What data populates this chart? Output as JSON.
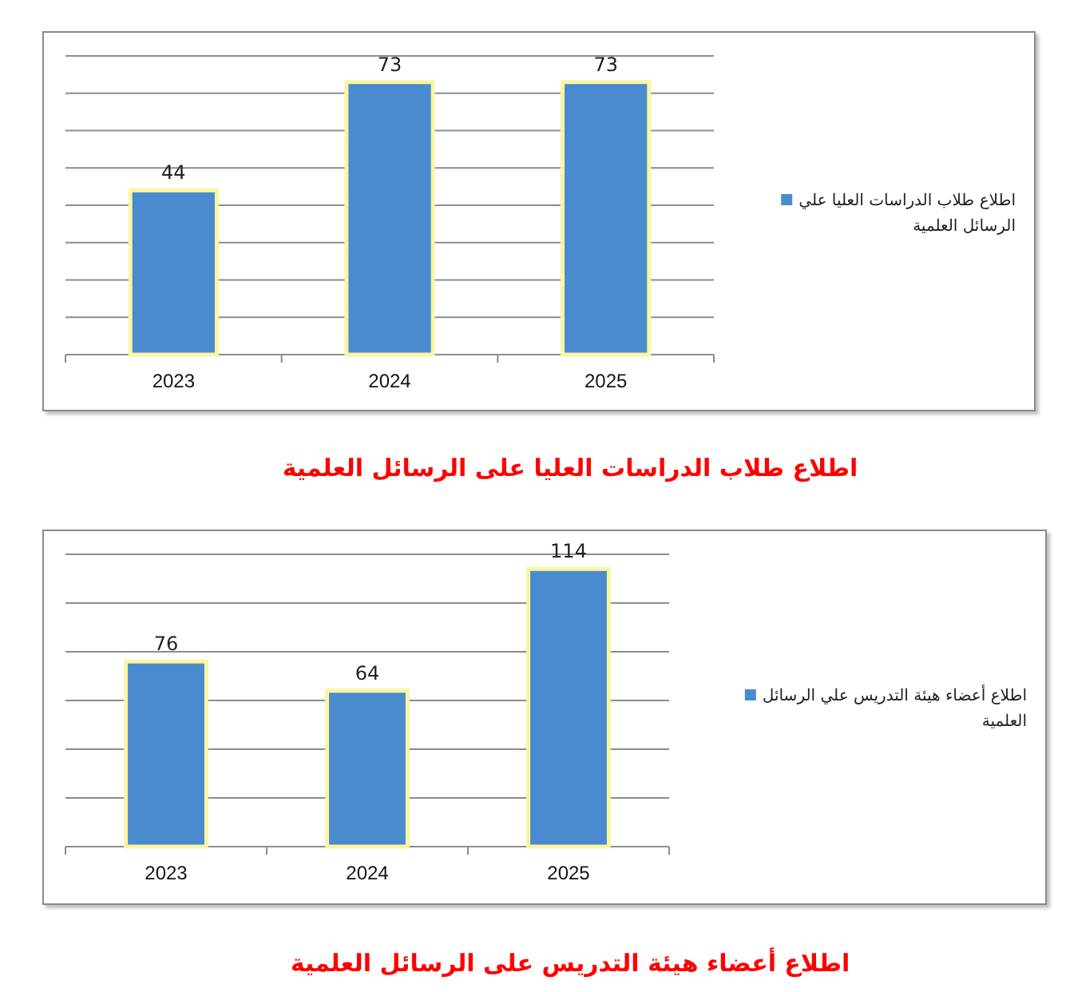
{
  "chart_data": [
    {
      "type": "bar",
      "title": "اطلاع طلاب الدراسات العليا على الرسائل العلمية",
      "categories": [
        "2023",
        "2024",
        "2025"
      ],
      "series": [
        {
          "name": "اطلاع طلاب الدراسات العليا علي الرسائل العلمية",
          "color": "#4a8bd0",
          "values": [
            44,
            73,
            73
          ]
        }
      ],
      "ylim": [
        0,
        80
      ],
      "yticks": [
        {
          "value": 0,
          "label": null
        },
        {
          "value": 10,
          "label": null
        },
        {
          "value": 20,
          "label": null
        },
        {
          "value": 30,
          "label": null
        },
        {
          "value": 40,
          "label": null
        },
        {
          "value": 50,
          "label": null
        },
        {
          "value": 60,
          "label": null
        },
        {
          "value": 70,
          "label": null
        },
        {
          "value": 80,
          "label": null
        }
      ],
      "grid": "y",
      "legend": "right",
      "tick_labels": "x",
      "data_labels": true
    },
    {
      "type": "bar",
      "title": "اطلاع أعضاء هيئة التدريس على الرسائل العلمية",
      "categories": [
        "2023",
        "2024",
        "2025"
      ],
      "series": [
        {
          "name": "اطلاع أعضاء هيئة التدريس علي الرسائل العلمية",
          "color": "#4a8bd0",
          "values": [
            76,
            64,
            114
          ]
        }
      ],
      "ylim": [
        0,
        120
      ],
      "yticks": [
        {
          "value": 0,
          "label": null
        },
        {
          "value": 20,
          "label": null
        },
        {
          "value": 40,
          "label": null
        },
        {
          "value": 60,
          "label": null
        },
        {
          "value": 80,
          "label": null
        },
        {
          "value": 100,
          "label": null
        },
        {
          "value": 120,
          "label": null
        }
      ],
      "grid": "y",
      "legend": "right",
      "tick_labels": "x",
      "data_labels": true
    }
  ]
}
